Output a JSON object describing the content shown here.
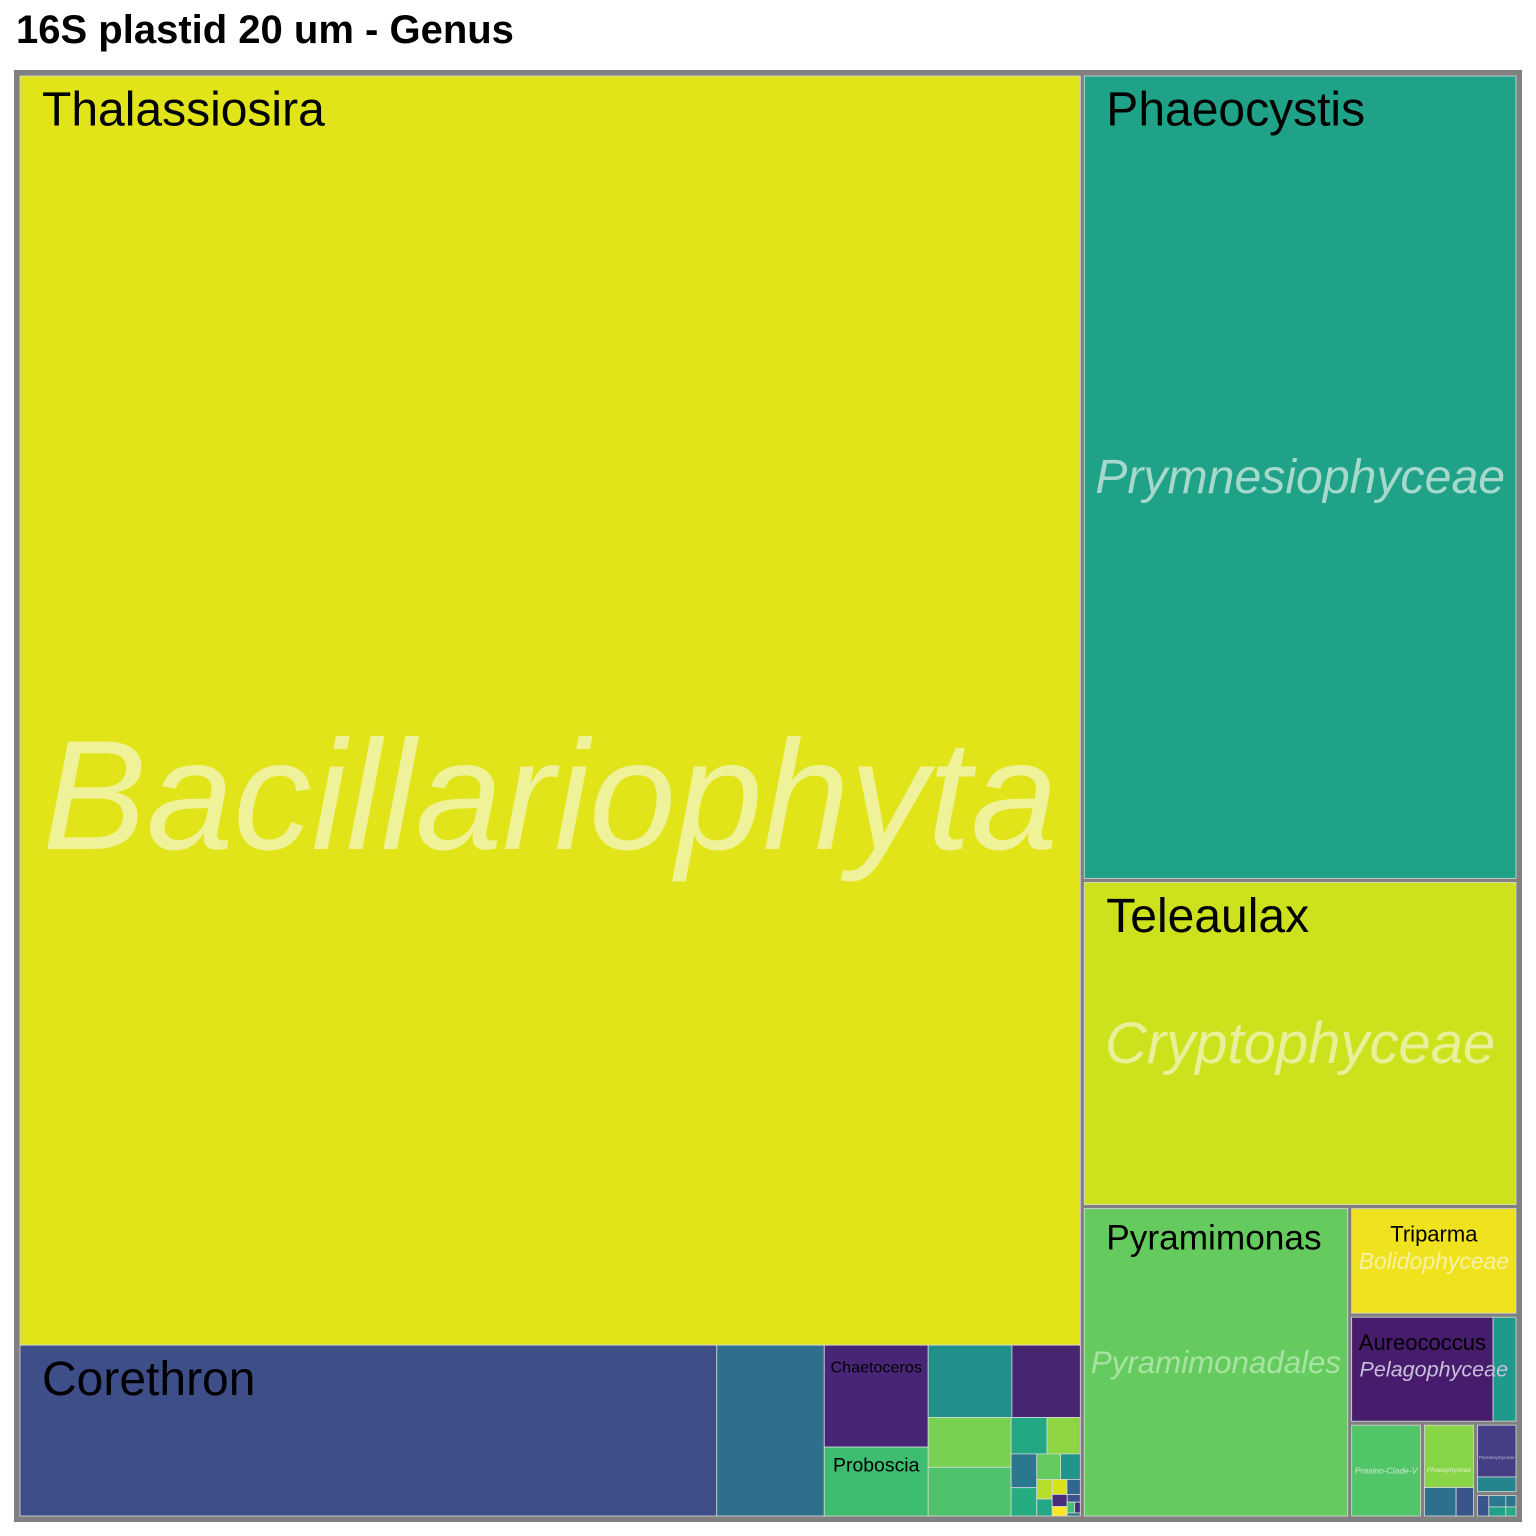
{
  "title": "16S plastid 20 um - Genus",
  "colors": {
    "background": "#ffffff",
    "frame": "#808080",
    "tile_stroke": "#d9d9d9"
  },
  "chart_data": {
    "type": "treemap",
    "title": "16S plastid 20 um - Genus",
    "groups": [
      {
        "class": "Bacillariophyta",
        "class_label_color": "#f0f29a",
        "genera": [
          {
            "name": "Thalassiosira",
            "value": 1334000,
            "color": "#e0e419"
          },
          {
            "name": "Corethron",
            "value": 118000,
            "color": "#3e4e89"
          },
          {
            "name": "",
            "value": 18200,
            "color": "#2e6f8c"
          },
          {
            "name": "Proboscia",
            "value": 7100,
            "color": "#3dbd6f"
          },
          {
            "name": "Chaetoceros",
            "value": 10500,
            "color": "#482677"
          },
          {
            "name": "",
            "value": 4100,
            "color": "#79d152"
          },
          {
            "name": "",
            "value": 4000,
            "color": "#4dc26a"
          },
          {
            "name": "",
            "value": 6000,
            "color": "#1f908b"
          },
          {
            "name": "",
            "value": 4900,
            "color": "#472570"
          },
          {
            "name": "",
            "value": 720,
            "color": "#23ad80"
          },
          {
            "name": "",
            "value": 1300,
            "color": "#22a884"
          },
          {
            "name": "",
            "value": 1200,
            "color": "#8ed544"
          },
          {
            "name": "",
            "value": 860,
            "color": "#2a788e"
          },
          {
            "name": "",
            "value": 600,
            "color": "#64cb5e"
          },
          {
            "name": "",
            "value": 500,
            "color": "#1f958b"
          },
          {
            "name": "",
            "value": 300,
            "color": "#b5de2b"
          },
          {
            "name": "",
            "value": 260,
            "color": "#22a884"
          },
          {
            "name": "",
            "value": 220,
            "color": "#d8e219"
          },
          {
            "name": "",
            "value": 200,
            "color": "#31668e"
          },
          {
            "name": "",
            "value": 180,
            "color": "#472d7b"
          },
          {
            "name": "",
            "value": 140,
            "color": "#fde725"
          },
          {
            "name": "",
            "value": 100,
            "color": "#3b528b"
          },
          {
            "name": "",
            "value": 80,
            "color": "#44bf70"
          },
          {
            "name": "",
            "value": 60,
            "color": "#482878"
          },
          {
            "name": "",
            "value": 40,
            "color": "#2c728e"
          }
        ]
      },
      {
        "class": "Prymnesiophyceae",
        "class_label_color": "#a6d8cc",
        "genera": [
          {
            "name": "Phaeocystis",
            "value": 346000,
            "color": "#1fa287"
          }
        ]
      },
      {
        "class": "Cryptophyceae",
        "class_label_color": "#e8f09a",
        "genera": [
          {
            "name": "Teleaulax",
            "value": 140000,
            "color": "#cde11d"
          }
        ]
      },
      {
        "class": "Pyramimonadales",
        "class_label_color": "#a8e3a2",
        "genera": [
          {
            "name": "Pyramimonas",
            "value": 82000,
            "color": "#65cb5e"
          }
        ]
      },
      {
        "class": "Pelagophyceae",
        "class_label_color": "#c8c1dc",
        "genera": [
          {
            "name": "Aureococcus",
            "value": 15400,
            "color": "#471c6c"
          },
          {
            "name": "",
            "value": 2500,
            "color": "#1f9a8a"
          }
        ]
      },
      {
        "class": "Bolidophyceae",
        "class_label_color": "#f6f3a6",
        "genera": [
          {
            "name": "Triparma",
            "value": 18000,
            "color": "#f0e21e"
          }
        ]
      },
      {
        "class": "Prasino-Clade-V",
        "class_label_color": "#c9ead0",
        "genera": [
          {
            "name": "",
            "value": 6800,
            "color": "#52c569"
          }
        ]
      },
      {
        "class": "Phaeophyceae",
        "class_label_color": "#e2f2c0",
        "genera": [
          {
            "name": "",
            "value": 3400,
            "color": "#89d548"
          },
          {
            "name": "",
            "value": 1000,
            "color": "#2d708e"
          },
          {
            "name": "",
            "value": 550,
            "color": "#39568c"
          }
        ]
      },
      {
        "class": "Florideophyceae",
        "class_label_color": "#bfb6d6",
        "genera": [
          {
            "name": "",
            "value": 2300,
            "color": "#433e85"
          },
          {
            "name": "",
            "value": 650,
            "color": "#25858e"
          }
        ]
      },
      {
        "class": "",
        "class_label_color": "#ffffff",
        "genera": [
          {
            "name": "",
            "value": 300,
            "color": "#3a548c"
          },
          {
            "name": "",
            "value": 250,
            "color": "#2a788e"
          },
          {
            "name": "",
            "value": 200,
            "color": "#1fa188"
          },
          {
            "name": "",
            "value": 150,
            "color": "#2b748e"
          },
          {
            "name": "",
            "value": 120,
            "color": "#22a884"
          }
        ]
      }
    ]
  }
}
